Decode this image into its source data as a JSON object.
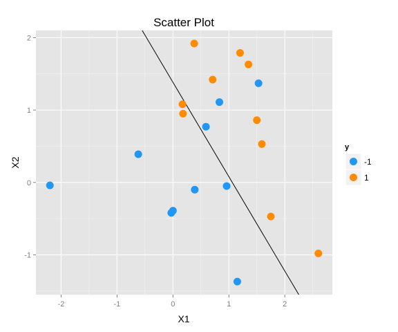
{
  "chart_data": {
    "type": "scatter",
    "title": "Scatter Plot",
    "xlabel": "X1",
    "ylabel": "X2",
    "xlim": [
      -2.45,
      2.85
    ],
    "ylim": [
      -1.55,
      2.1
    ],
    "x_ticks": [
      -2,
      -1,
      0,
      1,
      2
    ],
    "x_tick_labels": [
      "-2",
      "-1",
      "0",
      "1",
      "2"
    ],
    "y_ticks": [
      -1,
      0,
      1,
      2
    ],
    "y_tick_labels": [
      "-1",
      "0",
      "1",
      "2"
    ],
    "grid": true,
    "legend": {
      "title": "y",
      "placement": "right",
      "entries": [
        {
          "label": "-1",
          "color": "#2196F3"
        },
        {
          "label": "1",
          "color": "#FF8C00"
        }
      ]
    },
    "series": [
      {
        "name": "-1",
        "color": "#2196F3",
        "points": [
          {
            "x": -2.2,
            "y": -0.04
          },
          {
            "x": -0.62,
            "y": 0.39
          },
          {
            "x": -0.03,
            "y": -0.42
          },
          {
            "x": 0.0,
            "y": -0.39
          },
          {
            "x": 0.39,
            "y": -0.1
          },
          {
            "x": 0.59,
            "y": 0.77
          },
          {
            "x": 0.83,
            "y": 1.11
          },
          {
            "x": 0.96,
            "y": -0.05
          },
          {
            "x": 1.15,
            "y": -1.37
          },
          {
            "x": 1.53,
            "y": 1.37
          }
        ]
      },
      {
        "name": "1",
        "color": "#FF8C00",
        "points": [
          {
            "x": 0.38,
            "y": 1.92
          },
          {
            "x": 0.71,
            "y": 1.42
          },
          {
            "x": 0.17,
            "y": 1.08
          },
          {
            "x": 0.18,
            "y": 0.95
          },
          {
            "x": 1.2,
            "y": 1.79
          },
          {
            "x": 1.35,
            "y": 1.63
          },
          {
            "x": 1.5,
            "y": 0.86
          },
          {
            "x": 1.59,
            "y": 0.53
          },
          {
            "x": 1.75,
            "y": -0.47
          },
          {
            "x": 2.6,
            "y": -0.98
          }
        ]
      }
    ],
    "reference_line": {
      "x": [
        -0.55,
        2.25
      ],
      "y": [
        2.1,
        -1.55
      ],
      "color": "#000000"
    }
  }
}
